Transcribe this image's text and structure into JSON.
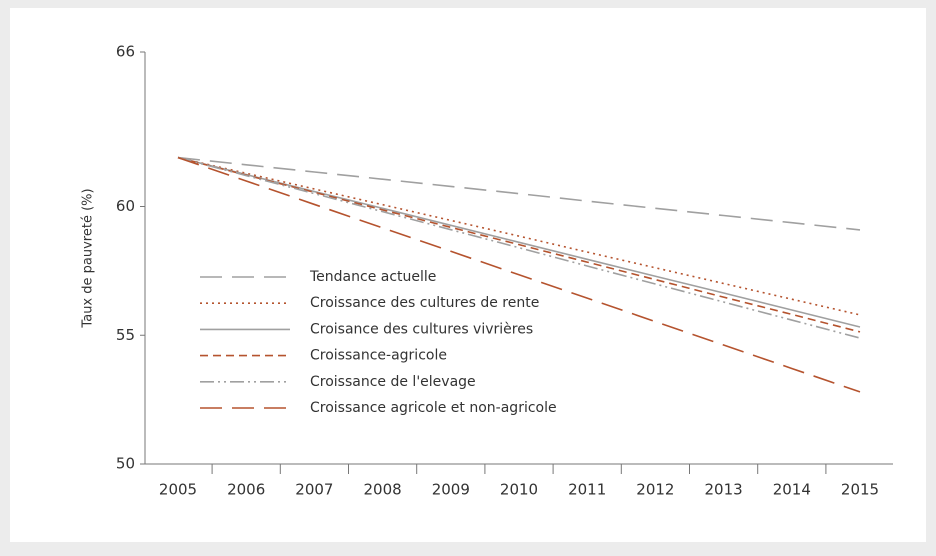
{
  "chart_data": {
    "type": "line",
    "y_label": "Taux de pauvreté (%)",
    "categories": [
      "2005",
      "2006",
      "2007",
      "2008",
      "2009",
      "2010",
      "2011",
      "2012",
      "2013",
      "2014",
      "2015"
    ],
    "ylim": [
      50,
      66
    ],
    "yticks": [
      50,
      55,
      60,
      66
    ],
    "series": [
      {
        "name": "Tendance actuelle",
        "color": "#a0a0a0",
        "dash": "long-dash",
        "values": [
          61.9,
          61.62,
          61.34,
          61.06,
          60.78,
          60.5,
          60.21,
          59.93,
          59.65,
          59.37,
          59.09
        ]
      },
      {
        "name": "Croissance des cultures de rente",
        "color": "#b5532e",
        "dash": "dot",
        "values": [
          61.9,
          61.29,
          60.68,
          60.07,
          59.46,
          58.85,
          58.23,
          57.62,
          57.01,
          56.4,
          55.79
        ]
      },
      {
        "name": "Croisance des cultures vivrières",
        "color": "#a0a0a0",
        "dash": "solid",
        "values": [
          61.9,
          61.24,
          60.58,
          59.93,
          59.27,
          58.61,
          57.95,
          57.29,
          56.64,
          55.98,
          55.32
        ]
      },
      {
        "name": "Croissance-agricole",
        "color": "#b5532e",
        "dash": "dash",
        "values": [
          61.9,
          61.22,
          60.55,
          59.87,
          59.19,
          58.52,
          57.84,
          57.16,
          56.48,
          55.81,
          55.13
        ]
      },
      {
        "name": "Croissance de l'elevage",
        "color": "#a0a0a0",
        "dash": "dash-dot-dot",
        "values": [
          61.9,
          61.2,
          60.5,
          59.8,
          59.1,
          58.4,
          57.69,
          56.99,
          56.29,
          55.59,
          54.89
        ]
      },
      {
        "name": "Croissance agricole et non-agricole",
        "color": "#b5532e",
        "dash": "long-dash",
        "values": [
          61.9,
          60.99,
          60.08,
          59.17,
          58.26,
          57.35,
          56.44,
          55.53,
          54.62,
          53.71,
          52.8
        ]
      }
    ]
  }
}
